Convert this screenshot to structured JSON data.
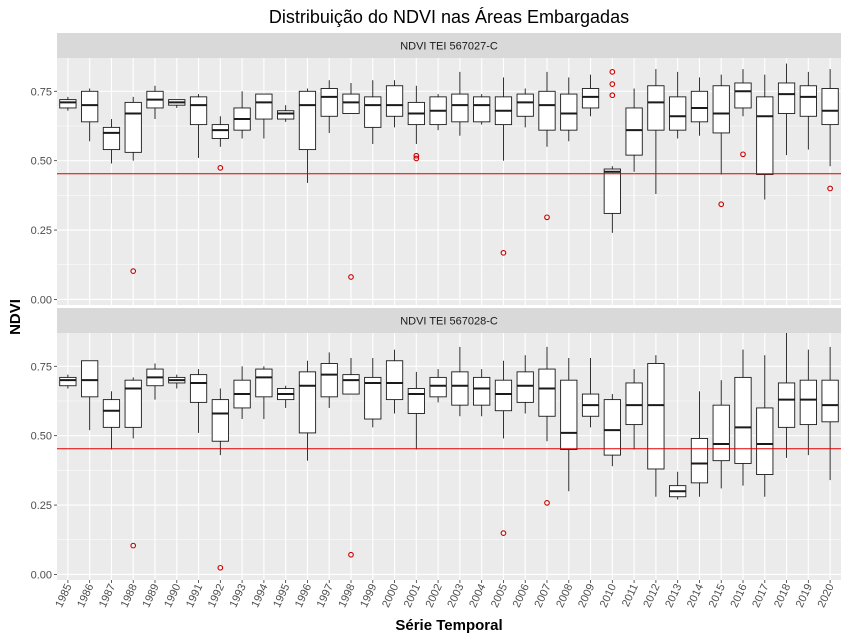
{
  "chart_data": {
    "type": "boxplot",
    "title": "Distribuição do NDVI nas Áreas Embargadas",
    "xlabel": "Série Temporal",
    "ylabel": "NDVI",
    "ylim": [
      -0.02,
      0.87
    ],
    "y_ticks": [
      "0.00",
      "0.25",
      "0.50",
      "0.75"
    ],
    "y_tick_values": [
      0,
      0.25,
      0.5,
      0.75
    ],
    "categories": [
      "1985",
      "1986",
      "1987",
      "1988",
      "1989",
      "1990",
      "1991",
      "1992",
      "1993",
      "1994",
      "1995",
      "1996",
      "1997",
      "1998",
      "1999",
      "2000",
      "2001",
      "2002",
      "2003",
      "2004",
      "2005",
      "2006",
      "2007",
      "2008",
      "2009",
      "2010",
      "2011",
      "2012",
      "2013",
      "2014",
      "2015",
      "2016",
      "2017",
      "2018",
      "2019",
      "2020"
    ],
    "grid": true,
    "colors": {
      "panel_bg": "#ebebeb",
      "grid": "#ffffff",
      "strip_bg": "#d9d9d9",
      "box_fill": "#ffffff",
      "box_line": "#1a1a1a",
      "outlier": "#cc0000",
      "threshold_line": "#e00000"
    },
    "panels": [
      {
        "label": "NDVI TEI 567027-C",
        "threshold": 0.453,
        "boxes": [
          [
            0.68,
            0.69,
            0.71,
            0.72,
            0.73
          ],
          [
            0.57,
            0.64,
            0.7,
            0.75,
            0.76
          ],
          [
            0.49,
            0.54,
            0.6,
            0.62,
            0.65
          ],
          [
            0.5,
            0.53,
            0.67,
            0.71,
            0.73
          ],
          [
            0.65,
            0.69,
            0.72,
            0.75,
            0.77
          ],
          [
            0.69,
            0.7,
            0.71,
            0.72,
            0.72
          ],
          [
            0.51,
            0.63,
            0.7,
            0.73,
            0.74
          ],
          [
            0.55,
            0.58,
            0.61,
            0.63,
            0.66
          ],
          [
            0.58,
            0.61,
            0.65,
            0.69,
            0.75
          ],
          [
            0.58,
            0.65,
            0.71,
            0.74,
            0.74
          ],
          [
            0.64,
            0.65,
            0.67,
            0.68,
            0.7
          ],
          [
            0.42,
            0.54,
            0.7,
            0.75,
            0.76
          ],
          [
            0.6,
            0.66,
            0.73,
            0.76,
            0.79
          ],
          [
            0.68,
            0.67,
            0.71,
            0.74,
            0.78
          ],
          [
            0.56,
            0.62,
            0.7,
            0.73,
            0.79
          ],
          [
            0.62,
            0.66,
            0.7,
            0.77,
            0.79
          ],
          [
            0.56,
            0.63,
            0.67,
            0.71,
            0.77
          ],
          [
            0.61,
            0.63,
            0.68,
            0.73,
            0.74
          ],
          [
            0.59,
            0.64,
            0.7,
            0.74,
            0.82
          ],
          [
            0.63,
            0.64,
            0.7,
            0.73,
            0.74
          ],
          [
            0.5,
            0.63,
            0.68,
            0.73,
            0.8
          ],
          [
            0.62,
            0.66,
            0.71,
            0.74,
            0.76
          ],
          [
            0.55,
            0.61,
            0.7,
            0.75,
            0.82
          ],
          [
            0.57,
            0.61,
            0.67,
            0.74,
            0.8
          ],
          [
            0.66,
            0.69,
            0.73,
            0.76,
            0.81
          ],
          [
            0.24,
            0.31,
            0.46,
            0.47,
            0.48
          ],
          [
            0.46,
            0.52,
            0.61,
            0.69,
            0.76
          ],
          [
            0.38,
            0.61,
            0.71,
            0.77,
            0.83
          ],
          [
            0.58,
            0.61,
            0.66,
            0.73,
            0.82
          ],
          [
            0.59,
            0.64,
            0.69,
            0.75,
            0.8
          ],
          [
            0.45,
            0.6,
            0.67,
            0.77,
            0.81
          ],
          [
            0.66,
            0.69,
            0.75,
            0.78,
            0.83
          ],
          [
            0.36,
            0.45,
            0.66,
            0.73,
            0.81
          ],
          [
            0.52,
            0.67,
            0.74,
            0.78,
            0.85
          ],
          [
            0.54,
            0.66,
            0.73,
            0.77,
            0.82
          ],
          [
            0.48,
            0.63,
            0.68,
            0.76,
            0.83
          ]
        ],
        "outliers": [
          [
            "1988",
            0.102
          ],
          [
            "1992",
            0.474
          ],
          [
            "1998",
            0.081
          ],
          [
            "2001",
            0.518
          ],
          [
            "2001",
            0.508
          ],
          [
            "2005",
            0.168
          ],
          [
            "2007",
            0.296
          ],
          [
            "2010",
            0.82
          ],
          [
            "2010",
            0.776
          ],
          [
            "2010",
            0.736
          ],
          [
            "2015",
            0.343
          ],
          [
            "2016",
            0.523
          ],
          [
            "2020",
            0.4
          ]
        ]
      },
      {
        "label": "NDVI TEI 567028-C",
        "threshold": 0.453,
        "boxes": [
          [
            0.67,
            0.68,
            0.7,
            0.71,
            0.72
          ],
          [
            0.52,
            0.64,
            0.7,
            0.77,
            0.77
          ],
          [
            0.45,
            0.53,
            0.59,
            0.63,
            0.66
          ],
          [
            0.49,
            0.53,
            0.67,
            0.7,
            0.71
          ],
          [
            0.63,
            0.68,
            0.71,
            0.74,
            0.76
          ],
          [
            0.67,
            0.69,
            0.7,
            0.71,
            0.72
          ],
          [
            0.51,
            0.62,
            0.69,
            0.72,
            0.74
          ],
          [
            0.43,
            0.48,
            0.58,
            0.63,
            0.67
          ],
          [
            0.56,
            0.6,
            0.65,
            0.7,
            0.75
          ],
          [
            0.56,
            0.64,
            0.71,
            0.74,
            0.75
          ],
          [
            0.6,
            0.63,
            0.65,
            0.67,
            0.68
          ],
          [
            0.41,
            0.51,
            0.68,
            0.73,
            0.77
          ],
          [
            0.6,
            0.64,
            0.72,
            0.76,
            0.8
          ],
          [
            0.65,
            0.65,
            0.7,
            0.72,
            0.78
          ],
          [
            0.53,
            0.56,
            0.69,
            0.71,
            0.78
          ],
          [
            0.58,
            0.63,
            0.69,
            0.77,
            0.81
          ],
          [
            0.45,
            0.58,
            0.65,
            0.67,
            0.73
          ],
          [
            0.62,
            0.64,
            0.68,
            0.71,
            0.74
          ],
          [
            0.57,
            0.61,
            0.68,
            0.73,
            0.82
          ],
          [
            0.57,
            0.61,
            0.67,
            0.71,
            0.74
          ],
          [
            0.49,
            0.59,
            0.65,
            0.7,
            0.77
          ],
          [
            0.58,
            0.62,
            0.68,
            0.73,
            0.79
          ],
          [
            0.48,
            0.57,
            0.67,
            0.74,
            0.82
          ],
          [
            0.3,
            0.45,
            0.51,
            0.7,
            0.78
          ],
          [
            0.53,
            0.57,
            0.61,
            0.65,
            0.78
          ],
          [
            0.39,
            0.43,
            0.52,
            0.63,
            0.65
          ],
          [
            0.45,
            0.54,
            0.61,
            0.69,
            0.74
          ],
          [
            0.28,
            0.38,
            0.61,
            0.76,
            0.79
          ],
          [
            0.27,
            0.28,
            0.3,
            0.32,
            0.37
          ],
          [
            0.28,
            0.33,
            0.4,
            0.49,
            0.66
          ],
          [
            0.31,
            0.41,
            0.47,
            0.61,
            0.7
          ],
          [
            0.32,
            0.4,
            0.53,
            0.71,
            0.81
          ],
          [
            0.28,
            0.36,
            0.47,
            0.6,
            0.79
          ],
          [
            0.42,
            0.53,
            0.63,
            0.69,
            0.87
          ],
          [
            0.43,
            0.54,
            0.63,
            0.7,
            0.81
          ],
          [
            0.34,
            0.55,
            0.61,
            0.7,
            0.82
          ]
        ],
        "outliers": [
          [
            "1988",
            0.104
          ],
          [
            "1992",
            0.024
          ],
          [
            "1998",
            0.071
          ],
          [
            "2005",
            0.149
          ],
          [
            "2007",
            0.258
          ]
        ]
      }
    ]
  }
}
